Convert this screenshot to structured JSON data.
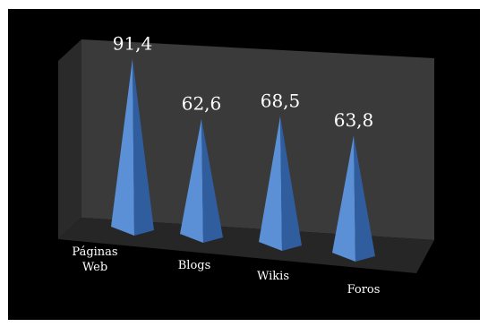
{
  "chart_data": {
    "type": "bar",
    "style": "3d-pyramid",
    "categories": [
      [
        "Páginas",
        "Web"
      ],
      [
        "Blogs"
      ],
      [
        "Wikis"
      ],
      [
        "Foros"
      ]
    ],
    "values": [
      91.4,
      62.6,
      68.5,
      63.8
    ],
    "data_labels": [
      "91,4",
      "62,6",
      "68,5",
      "63,8"
    ],
    "title": "",
    "xlabel": "",
    "ylabel": "",
    "ylim": [
      0,
      100
    ],
    "legend": "none",
    "grid": false,
    "colors": {
      "background": "#000000",
      "walls": "#3a3a3a",
      "floor": "#262626",
      "pyramid_light": "#5b8fd6",
      "pyramid_dark": "#2f5d9e",
      "text": "#ffffff"
    }
  }
}
